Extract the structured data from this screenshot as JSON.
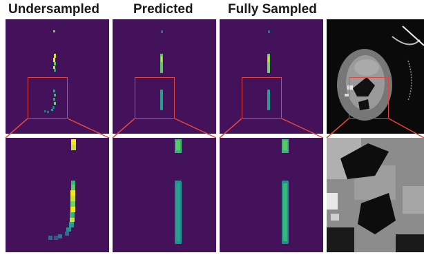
{
  "columns": [
    {
      "title": "Undersampled"
    },
    {
      "title": "Predicted"
    },
    {
      "title": "Fully Sampled"
    },
    {
      "title": ""
    }
  ],
  "colors": {
    "background_purple": "#44125a",
    "roi_red": "#e8463c",
    "viridis_teal": "#2a9d8f",
    "viridis_yellow": "#f4e61e"
  }
}
